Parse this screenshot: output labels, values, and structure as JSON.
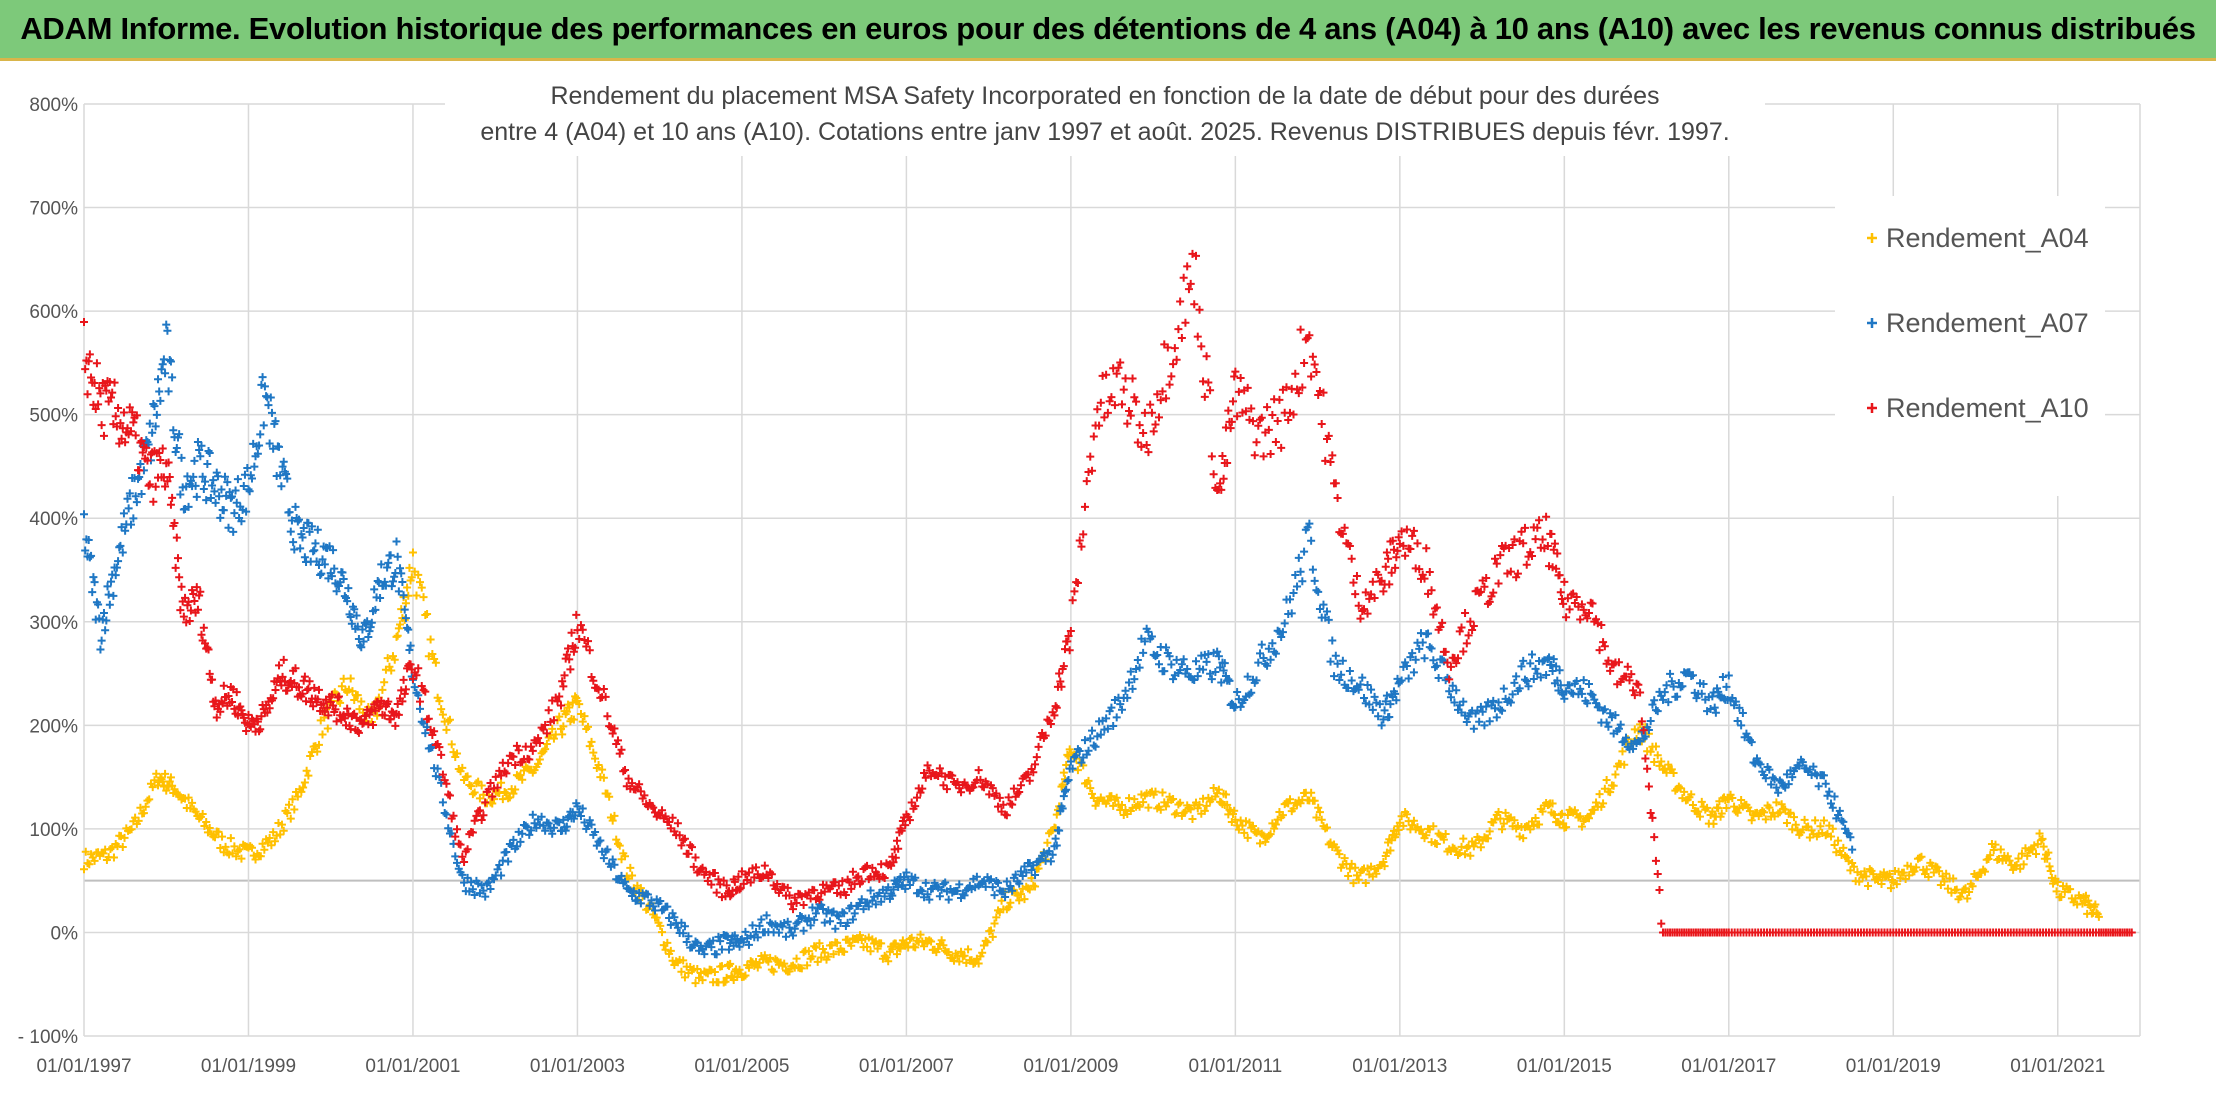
{
  "banner": {
    "title": "ADAM Informe. Evolution historique des performances en euros pour des détentions de 4 ans (A04) à 10 ans (A10) avec les revenus connus distribués"
  },
  "colors": {
    "banner_bg": "#7dc97a",
    "banner_border": "#d9b54a",
    "A04": "#ffc000",
    "A07": "#1f77c4",
    "A10": "#e8161b",
    "grid": "#d9d9d9"
  },
  "chart_data": {
    "type": "scatter",
    "title_lines": [
      "Rendement du placement MSA Safety Incorporated en fonction de la date de début pour des durées",
      "entre 4 (A04) et 10 ans (A10). Cotations entre janv 1997 et août. 2025. Revenus DISTRIBUES depuis févr. 1997."
    ],
    "xlabel": "",
    "ylabel": "",
    "x_tick_labels": [
      "01/01/1997",
      "01/01/1999",
      "01/01/2001",
      "01/01/2003",
      "01/01/2005",
      "01/01/2007",
      "01/01/2009",
      "01/01/2011",
      "01/01/2013",
      "01/01/2015",
      "01/01/2017",
      "01/01/2019",
      "01/01/2021"
    ],
    "y_tick_labels": [
      "800%",
      "700%",
      "600%",
      "500%",
      "400%",
      "300%",
      "200%",
      "100%",
      "0%",
      "- 100%"
    ],
    "ylim": [
      -100,
      800
    ],
    "xlim": [
      1997.0,
      2022.0
    ],
    "marker": "+",
    "grid": true,
    "legend_position": "top-right",
    "series": [
      {
        "name": "Rendement_A04",
        "color": "#ffc000",
        "x": [
          1997.0,
          1997.3,
          1997.6,
          1997.9,
          1998.1,
          1998.4,
          1998.7,
          1999.0,
          1999.3,
          1999.6,
          1999.9,
          2000.2,
          2000.5,
          2000.8,
          2001.0,
          2001.3,
          2001.6,
          2001.9,
          2002.2,
          2002.5,
          2002.8,
          2003.0,
          2003.3,
          2003.6,
          2003.9,
          2004.2,
          2004.5,
          2004.8,
          2005.0,
          2005.3,
          2005.6,
          2005.9,
          2006.2,
          2006.5,
          2006.8,
          2007.0,
          2007.3,
          2007.6,
          2007.9,
          2008.2,
          2008.5,
          2008.8,
          2009.0,
          2009.3,
          2009.6,
          2009.9,
          2010.2,
          2010.5,
          2010.8,
          2011.0,
          2011.3,
          2011.6,
          2011.9,
          2012.2,
          2012.5,
          2012.8,
          2013.0,
          2013.3,
          2013.6,
          2013.9,
          2014.2,
          2014.5,
          2014.8,
          2015.0,
          2015.3,
          2015.6,
          2015.9,
          2016.2,
          2016.5,
          2016.8,
          2017.0,
          2017.3,
          2017.6,
          2017.9,
          2018.2,
          2018.5,
          2018.8,
          2019.0,
          2019.3,
          2019.6,
          2019.9,
          2020.2,
          2020.5,
          2020.8,
          2021.0,
          2021.3,
          2021.5
        ],
        "y": [
          70,
          75,
          100,
          150,
          140,
          110,
          85,
          75,
          90,
          130,
          200,
          240,
          200,
          280,
          360,
          240,
          150,
          130,
          140,
          160,
          200,
          220,
          150,
          60,
          20,
          -30,
          -45,
          -40,
          -35,
          -30,
          -30,
          -20,
          -15,
          -10,
          -20,
          -10,
          -10,
          -20,
          -25,
          30,
          40,
          100,
          180,
          130,
          120,
          130,
          125,
          115,
          135,
          110,
          90,
          120,
          130,
          80,
          50,
          70,
          110,
          100,
          85,
          80,
          110,
          100,
          120,
          110,
          110,
          150,
          200,
          160,
          130,
          110,
          130,
          110,
          120,
          100,
          100,
          60,
          50,
          50,
          70,
          50,
          35,
          80,
          65,
          90,
          40,
          30,
          15
        ]
      },
      {
        "name": "Rendement_A07",
        "color": "#1f77c4",
        "x": [
          1997.0,
          1997.2,
          1997.4,
          1997.6,
          1997.8,
          1998.0,
          1998.2,
          1998.4,
          1998.6,
          1998.8,
          1999.0,
          1999.2,
          1999.4,
          1999.6,
          1999.8,
          2000.0,
          2000.2,
          2000.4,
          2000.6,
          2000.8,
          2001.0,
          2001.3,
          2001.6,
          2001.9,
          2002.2,
          2002.5,
          2002.8,
          2003.0,
          2003.3,
          2003.6,
          2003.9,
          2004.2,
          2004.5,
          2004.8,
          2005.0,
          2005.3,
          2005.6,
          2005.9,
          2006.2,
          2006.5,
          2006.8,
          2007.0,
          2007.3,
          2007.6,
          2007.9,
          2008.2,
          2008.5,
          2008.8,
          2009.0,
          2009.3,
          2009.6,
          2009.9,
          2010.2,
          2010.5,
          2010.8,
          2011.0,
          2011.3,
          2011.6,
          2011.9,
          2012.2,
          2012.5,
          2012.8,
          2013.0,
          2013.3,
          2013.6,
          2013.9,
          2014.2,
          2014.5,
          2014.8,
          2015.0,
          2015.3,
          2015.6,
          2015.9,
          2016.2,
          2016.5,
          2016.8,
          2017.0,
          2017.3,
          2017.6,
          2017.9,
          2018.2,
          2018.5
        ],
        "y": [
          390,
          290,
          360,
          420,
          470,
          560,
          430,
          450,
          430,
          410,
          430,
          520,
          440,
          380,
          370,
          360,
          330,
          280,
          340,
          360,
          250,
          150,
          50,
          40,
          80,
          110,
          100,
          120,
          80,
          40,
          30,
          10,
          -20,
          -10,
          -10,
          10,
          0,
          20,
          10,
          30,
          40,
          50,
          40,
          40,
          50,
          40,
          60,
          80,
          160,
          190,
          220,
          280,
          260,
          250,
          260,
          220,
          260,
          300,
          380,
          260,
          240,
          210,
          240,
          280,
          240,
          200,
          220,
          250,
          260,
          240,
          230,
          200,
          180,
          230,
          250,
          220,
          240,
          170,
          140,
          160,
          140,
          80
        ]
      },
      {
        "name": "Rendement_A10",
        "color": "#e8161b",
        "x": [
          1997.0,
          1997.2,
          1997.4,
          1997.6,
          1997.8,
          1998.0,
          1998.2,
          1998.4,
          1998.6,
          1998.8,
          1999.0,
          1999.2,
          1999.4,
          1999.6,
          1999.8,
          2000.0,
          2000.2,
          2000.4,
          2000.6,
          2000.8,
          2001.0,
          2001.3,
          2001.6,
          2001.9,
          2002.2,
          2002.5,
          2002.8,
          2003.0,
          2003.3,
          2003.6,
          2003.9,
          2004.2,
          2004.5,
          2004.8,
          2005.0,
          2005.3,
          2005.6,
          2005.9,
          2006.2,
          2006.5,
          2006.8,
          2007.0,
          2007.3,
          2007.6,
          2007.9,
          2008.2,
          2008.5,
          2008.8,
          2009.0,
          2009.3,
          2009.6,
          2009.9,
          2010.2,
          2010.5,
          2010.8,
          2011.0,
          2011.3,
          2011.6,
          2011.9,
          2012.2,
          2012.5,
          2012.8,
          2013.0,
          2013.3,
          2013.6,
          2013.9,
          2014.2,
          2014.5,
          2014.8,
          2015.0,
          2015.3,
          2015.6,
          2015.9,
          2016.2,
          2016.6,
          2017.0,
          2017.5,
          2018.0,
          2018.5,
          2019.0,
          2019.5,
          2020.0,
          2020.5,
          2021.0,
          2021.5,
          2021.9
        ],
        "y": [
          560,
          510,
          500,
          480,
          440,
          450,
          310,
          320,
          220,
          230,
          200,
          210,
          250,
          240,
          230,
          220,
          210,
          200,
          220,
          210,
          260,
          180,
          70,
          130,
          170,
          180,
          230,
          300,
          230,
          150,
          120,
          100,
          60,
          40,
          50,
          60,
          30,
          40,
          40,
          60,
          60,
          110,
          160,
          140,
          150,
          120,
          150,
          220,
          290,
          500,
          530,
          480,
          560,
          640,
          420,
          520,
          480,
          500,
          580,
          430,
          320,
          340,
          380,
          360,
          260,
          310,
          350,
          370,
          380,
          320,
          320,
          250,
          240,
          0,
          0,
          0,
          0,
          0,
          0,
          0,
          0,
          0,
          0,
          0,
          0,
          0
        ]
      }
    ]
  }
}
